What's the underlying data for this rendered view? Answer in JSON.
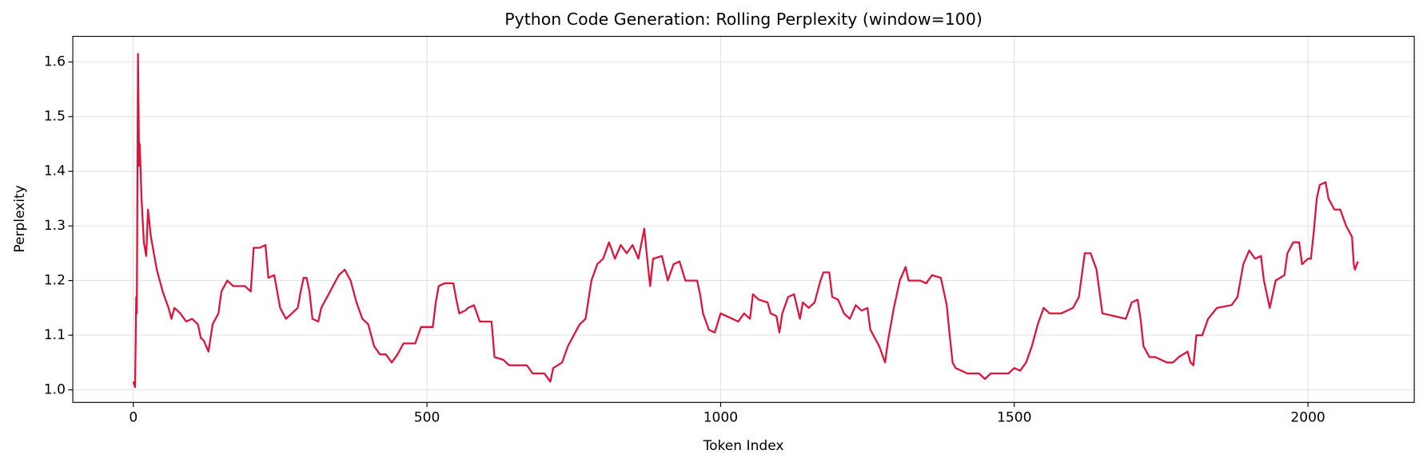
{
  "chart_data": {
    "type": "line",
    "title": "Python Code Generation: Rolling Perplexity (window=100)",
    "xlabel": "Token Index",
    "ylabel": "Perplexity",
    "xlim": [
      -103,
      2181
    ],
    "ylim": [
      0.977,
      1.647
    ],
    "xticks": [
      0,
      500,
      1000,
      1500,
      2000
    ],
    "yticks": [
      {
        "value": 1,
        "label": "1.0"
      },
      1.1,
      1.2,
      1.3,
      1.4,
      1.5,
      1.6
    ],
    "grid": true,
    "series": [
      {
        "color": "#dc143c",
        "x": [
          0,
          3,
          5,
          6,
          8,
          10,
          11,
          14,
          18,
          22,
          25,
          30,
          40,
          50,
          60,
          65,
          70,
          80,
          90,
          100,
          110,
          115,
          120,
          128,
          135,
          145,
          150,
          160,
          170,
          190,
          200,
          205,
          215,
          225,
          230,
          240,
          245,
          250,
          260,
          270,
          280,
          285,
          290,
          295,
          300,
          305,
          315,
          320,
          330,
          340,
          350,
          360,
          370,
          380,
          390,
          400,
          410,
          420,
          430,
          440,
          450,
          460,
          480,
          490,
          510,
          515,
          520,
          530,
          545,
          550,
          555,
          565,
          570,
          580,
          590,
          610,
          615,
          630,
          640,
          670,
          680,
          700,
          710,
          715,
          730,
          740,
          750,
          760,
          770,
          780,
          790,
          800,
          810,
          820,
          830,
          840,
          850,
          860,
          870,
          875,
          880,
          885,
          900,
          910,
          920,
          930,
          940,
          960,
          965,
          970,
          980,
          990,
          1000,
          1020,
          1030,
          1040,
          1050,
          1055,
          1065,
          1080,
          1085,
          1095,
          1100,
          1105,
          1115,
          1125,
          1135,
          1140,
          1150,
          1160,
          1170,
          1175,
          1185,
          1190,
          1200,
          1210,
          1220,
          1230,
          1240,
          1250,
          1255,
          1260,
          1270,
          1280,
          1285,
          1295,
          1305,
          1315,
          1320,
          1340,
          1350,
          1360,
          1375,
          1385,
          1390,
          1395,
          1400,
          1420,
          1440,
          1450,
          1460,
          1490,
          1500,
          1510,
          1520,
          1530,
          1540,
          1550,
          1560,
          1580,
          1600,
          1610,
          1620,
          1630,
          1640,
          1645,
          1650,
          1670,
          1690,
          1700,
          1710,
          1715,
          1720,
          1730,
          1740,
          1760,
          1770,
          1780,
          1795,
          1800,
          1805,
          1810,
          1820,
          1830,
          1845,
          1870,
          1880,
          1890,
          1900,
          1910,
          1920,
          1925,
          1930,
          1935,
          1945,
          1960,
          1965,
          1975,
          1985,
          1990,
          2000,
          2005,
          2010,
          2015,
          2020,
          2030,
          2035,
          2045,
          2055,
          2065,
          2070,
          2075,
          2078,
          2080,
          2085
        ],
        "values": [
          1.015,
          1.005,
          1.17,
          1.14,
          1.615,
          1.41,
          1.45,
          1.35,
          1.27,
          1.245,
          1.33,
          1.28,
          1.22,
          1.18,
          1.15,
          1.13,
          1.15,
          1.14,
          1.125,
          1.13,
          1.12,
          1.095,
          1.09,
          1.07,
          1.12,
          1.14,
          1.18,
          1.2,
          1.19,
          1.19,
          1.18,
          1.26,
          1.26,
          1.265,
          1.205,
          1.21,
          1.18,
          1.15,
          1.13,
          1.14,
          1.15,
          1.18,
          1.205,
          1.205,
          1.18,
          1.13,
          1.125,
          1.15,
          1.17,
          1.19,
          1.21,
          1.22,
          1.2,
          1.16,
          1.13,
          1.12,
          1.08,
          1.065,
          1.065,
          1.05,
          1.065,
          1.085,
          1.085,
          1.115,
          1.115,
          1.16,
          1.19,
          1.195,
          1.195,
          1.165,
          1.14,
          1.145,
          1.15,
          1.155,
          1.125,
          1.125,
          1.06,
          1.055,
          1.045,
          1.045,
          1.03,
          1.03,
          1.015,
          1.04,
          1.05,
          1.08,
          1.1,
          1.12,
          1.13,
          1.2,
          1.23,
          1.24,
          1.27,
          1.24,
          1.265,
          1.25,
          1.265,
          1.24,
          1.295,
          1.24,
          1.19,
          1.24,
          1.245,
          1.2,
          1.23,
          1.235,
          1.2,
          1.2,
          1.175,
          1.14,
          1.11,
          1.105,
          1.14,
          1.13,
          1.125,
          1.14,
          1.13,
          1.175,
          1.165,
          1.16,
          1.14,
          1.135,
          1.105,
          1.14,
          1.17,
          1.175,
          1.13,
          1.16,
          1.15,
          1.16,
          1.2,
          1.215,
          1.215,
          1.17,
          1.165,
          1.14,
          1.13,
          1.155,
          1.145,
          1.15,
          1.11,
          1.1,
          1.08,
          1.05,
          1.09,
          1.15,
          1.2,
          1.225,
          1.2,
          1.2,
          1.195,
          1.21,
          1.205,
          1.155,
          1.1,
          1.05,
          1.04,
          1.03,
          1.03,
          1.02,
          1.03,
          1.03,
          1.04,
          1.035,
          1.05,
          1.08,
          1.12,
          1.15,
          1.14,
          1.14,
          1.15,
          1.17,
          1.25,
          1.25,
          1.22,
          1.18,
          1.14,
          1.135,
          1.13,
          1.16,
          1.165,
          1.13,
          1.08,
          1.06,
          1.06,
          1.05,
          1.05,
          1.06,
          1.07,
          1.05,
          1.045,
          1.1,
          1.1,
          1.13,
          1.15,
          1.155,
          1.17,
          1.23,
          1.255,
          1.24,
          1.245,
          1.2,
          1.175,
          1.15,
          1.2,
          1.21,
          1.25,
          1.27,
          1.27,
          1.23,
          1.24,
          1.24,
          1.29,
          1.35,
          1.375,
          1.38,
          1.35,
          1.33,
          1.33,
          1.3,
          1.29,
          1.28,
          1.23,
          1.22,
          1.235
        ]
      }
    ]
  }
}
